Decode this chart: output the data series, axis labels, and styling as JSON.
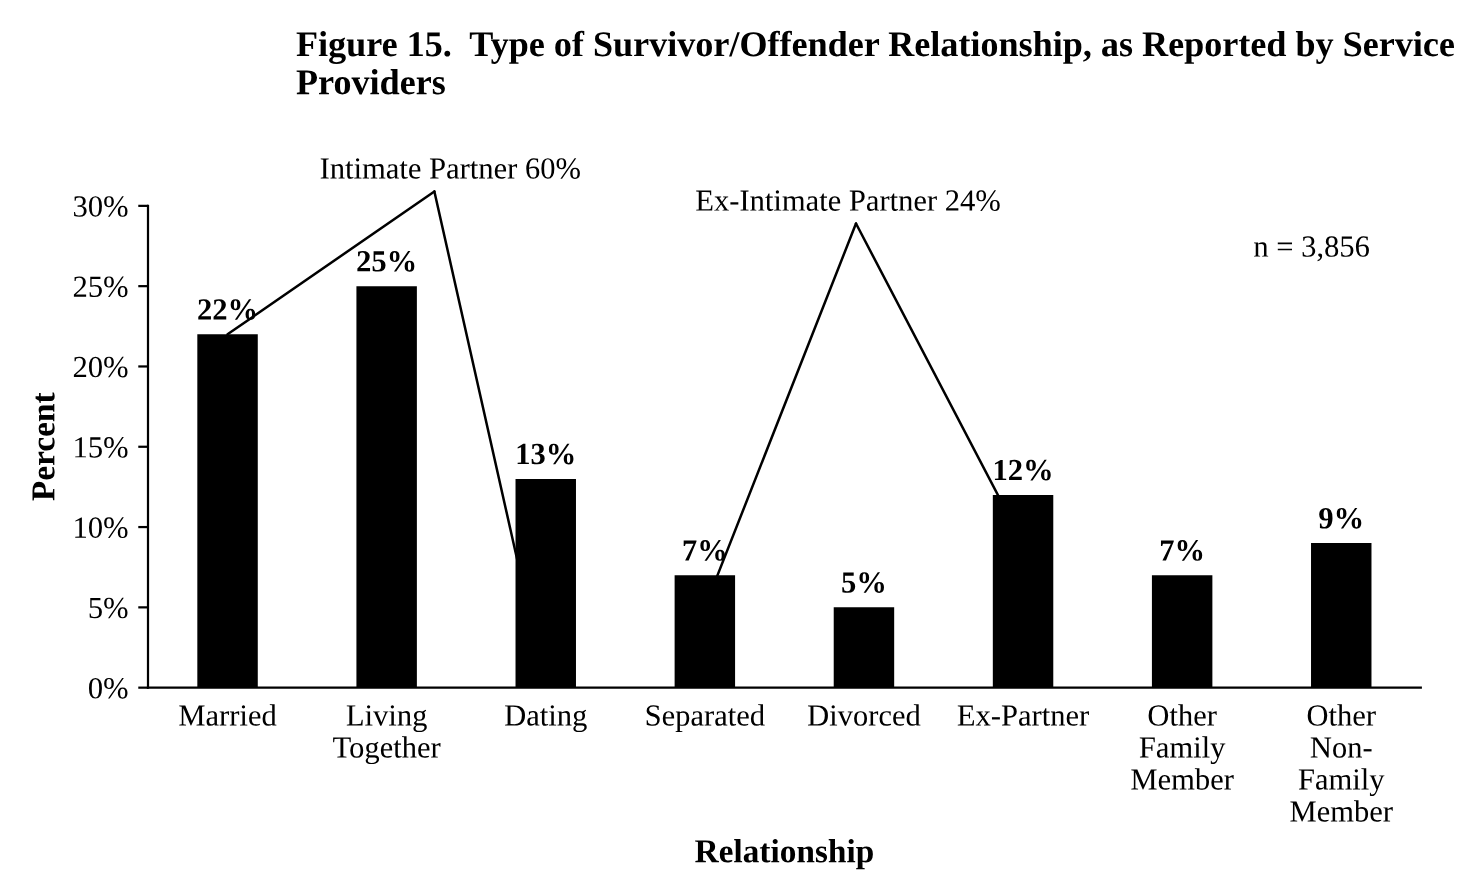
{
  "chart_data": {
    "type": "bar",
    "title": "Figure 15.  Type of Survivor/Offender Relationship, as Reported by Service Providers",
    "xlabel": "Relationship",
    "ylabel": "Percent",
    "categories": [
      "Married",
      "Living\nTogether",
      "Dating",
      "Separated",
      "Divorced",
      "Ex-Partner",
      "Other\nFamily\nMember",
      "Other\nNon-\nFamily\nMember"
    ],
    "values": [
      22,
      25,
      13,
      7,
      5,
      12,
      7,
      9
    ],
    "value_labels": [
      "22%",
      "25%",
      "13%",
      "7%",
      "5%",
      "12%",
      "7%",
      "9%"
    ],
    "color": "#000000",
    "ylim": [
      0,
      30
    ],
    "yticks": [
      {
        "value": 0,
        "label": "0%"
      },
      {
        "value": 5,
        "label": "5%"
      },
      {
        "value": 10,
        "label": "10%"
      },
      {
        "value": 15,
        "label": "15%"
      },
      {
        "value": 20,
        "label": "20%"
      },
      {
        "value": 25,
        "label": "25%"
      },
      {
        "value": 30,
        "label": "30%"
      }
    ],
    "grid": false,
    "legend": false,
    "annotations": [
      {
        "text": "Intimate Partner 60%",
        "x": "Married",
        "y": 22
      },
      "Ex-Intimate Partner 24%",
      "n = 3,856"
    ]
  }
}
